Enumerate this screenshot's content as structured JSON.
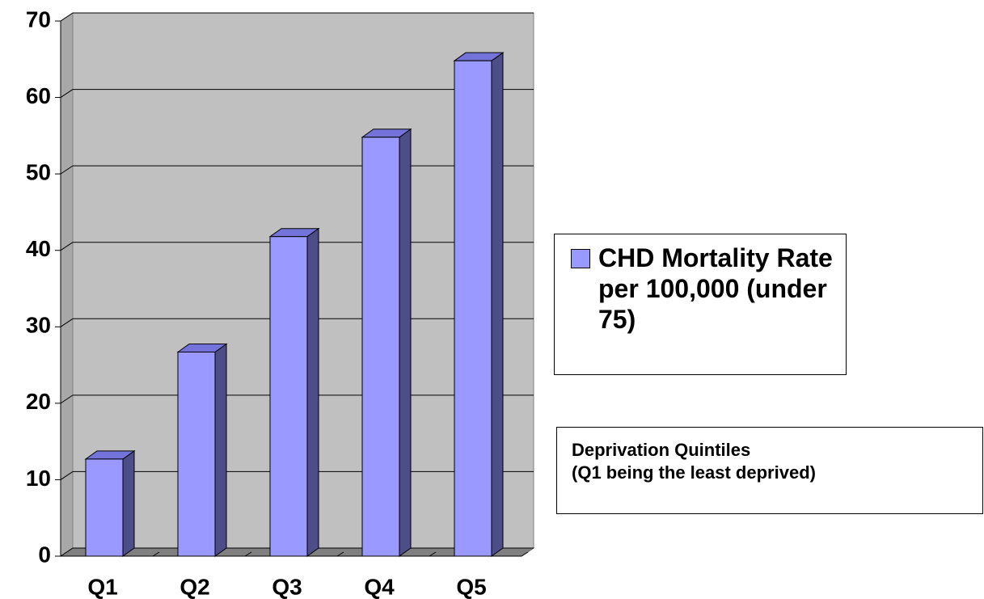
{
  "chart_data": {
    "type": "bar",
    "categories": [
      "Q1",
      "Q2",
      "Q3",
      "Q4",
      "Q5"
    ],
    "series": [
      {
        "name": "CHD Mortality Rate per 100,000 (under 75)",
        "color": "#9999ff",
        "values": [
          12.7,
          26.7,
          41.8,
          54.8,
          64.8
        ]
      }
    ],
    "ylim": [
      0,
      70
    ],
    "yticks": [
      0,
      10,
      20,
      30,
      40,
      50,
      60,
      70
    ],
    "grid": true,
    "annotation_lines": [
      "Deprivation Quintiles",
      "(Q1 being the least deprived)"
    ]
  }
}
